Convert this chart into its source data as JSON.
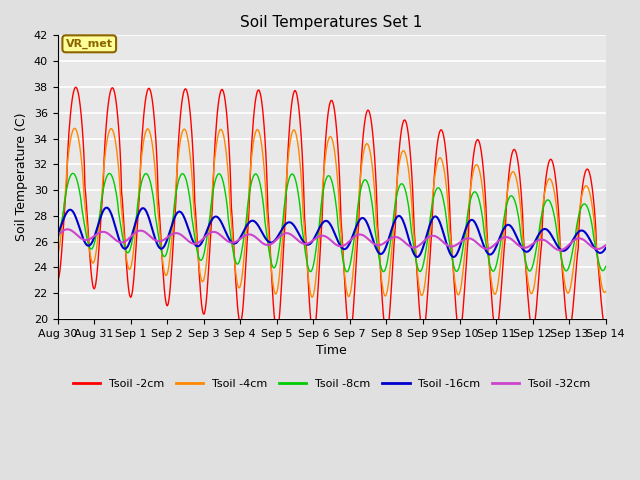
{
  "title": "Soil Temperatures Set 1",
  "xlabel": "Time",
  "ylabel": "Soil Temperature (C)",
  "ylim": [
    20,
    42
  ],
  "yticks": [
    20,
    22,
    24,
    26,
    28,
    30,
    32,
    34,
    36,
    38,
    40,
    42
  ],
  "xtick_labels": [
    "Aug 30",
    "Aug 31",
    "Sep 1",
    "Sep 2",
    "Sep 3",
    "Sep 4",
    "Sep 5",
    "Sep 6",
    "Sep 7",
    "Sep 8",
    "Sep 9",
    "Sep 10",
    "Sep 11",
    "Sep 12",
    "Sep 13",
    "Sep 14"
  ],
  "background_color": "#e0e0e0",
  "plot_bg_color": "#e8e8e8",
  "grid_color": "#ffffff",
  "annotation_text": "VR_met",
  "annotation_bg": "#ffff99",
  "annotation_border": "#8b6400",
  "lines": {
    "Tsoil -2cm": {
      "color": "#ff0000",
      "lw": 1.0
    },
    "Tsoil -4cm": {
      "color": "#ff8800",
      "lw": 1.0
    },
    "Tsoil -8cm": {
      "color": "#00cc00",
      "lw": 1.0
    },
    "Tsoil -16cm": {
      "color": "#0000cc",
      "lw": 1.5
    },
    "Tsoil -32cm": {
      "color": "#cc44cc",
      "lw": 1.5
    }
  }
}
